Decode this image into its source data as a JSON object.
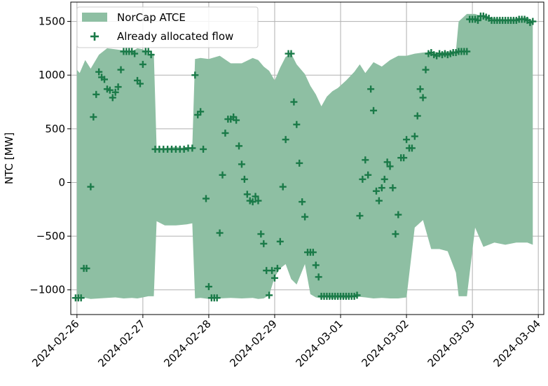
{
  "chart_data": {
    "type": "area",
    "title": "",
    "xlabel": "",
    "ylabel": "NTC [MW]",
    "ylim": [
      -1230,
      1680
    ],
    "xlim": [
      "2024-02-25T21:45",
      "2024-03-04T02:00"
    ],
    "x_ticks": [
      "2024-02-26",
      "2024-02-27",
      "2024-02-28",
      "2024-02-29",
      "2024-03-01",
      "2024-03-02",
      "2024-03-03",
      "2024-03-04"
    ],
    "y_ticks": [
      -1000,
      -500,
      0,
      500,
      1000,
      1500
    ],
    "y_tick_labels": [
      "−1000",
      "−500",
      "0",
      "500",
      "1000",
      "1500"
    ],
    "grid": true,
    "legend_position": "top-left",
    "colors": {
      "band": "#8ebfa3",
      "marker": "#1a7a48",
      "grid": "#b0b0b0"
    },
    "series": [
      {
        "name": "NorCap ATCE",
        "kind": "band",
        "x": [
          "2024-02-26T00:00",
          "2024-02-26T01:00",
          "2024-02-26T03:00",
          "2024-02-26T05:00",
          "2024-02-26T08:00",
          "2024-02-26T11:00",
          "2024-02-26T14:00",
          "2024-02-26T17:00",
          "2024-02-26T20:00",
          "2024-02-26T22:00",
          "2024-02-27T00:00",
          "2024-02-27T02:00",
          "2024-02-27T04:00",
          "2024-02-27T05:00",
          "2024-02-27T08:00",
          "2024-02-27T12:00",
          "2024-02-27T16:00",
          "2024-02-27T18:00",
          "2024-02-27T19:00",
          "2024-02-27T21:00",
          "2024-02-28T00:00",
          "2024-02-28T04:00",
          "2024-02-28T08:00",
          "2024-02-28T12:00",
          "2024-02-28T16:00",
          "2024-02-28T18:00",
          "2024-02-28T20:00",
          "2024-02-28T22:00",
          "2024-02-29T00:00",
          "2024-02-29T02:00",
          "2024-02-29T04:00",
          "2024-02-29T06:00",
          "2024-02-29T08:00",
          "2024-02-29T11:00",
          "2024-02-29T13:00",
          "2024-02-29T15:00",
          "2024-02-29T17:00",
          "2024-02-29T19:00",
          "2024-02-29T21:00",
          "2024-02-29T23:00",
          "2024-03-01T02:00",
          "2024-03-01T05:00",
          "2024-03-01T07:00",
          "2024-03-01T09:00",
          "2024-03-01T12:00",
          "2024-03-01T15:00",
          "2024-03-01T18:00",
          "2024-03-01T21:00",
          "2024-03-02T00:00",
          "2024-03-02T03:00",
          "2024-03-02T06:00",
          "2024-03-02T09:00",
          "2024-03-02T12:00",
          "2024-03-02T15:00",
          "2024-03-02T18:00",
          "2024-03-02T19:00",
          "2024-03-02T22:00",
          "2024-03-03T01:00",
          "2024-03-03T04:00",
          "2024-03-03T08:00",
          "2024-03-03T12:00",
          "2024-03-03T16:00",
          "2024-03-03T20:00",
          "2024-03-03T22:00"
        ],
        "upper": [
          1050,
          1020,
          1140,
          1060,
          1190,
          1250,
          1240,
          1230,
          1220,
          1250,
          1240,
          1200,
          1200,
          320,
          320,
          330,
          320,
          330,
          1150,
          1160,
          1150,
          1180,
          1110,
          1110,
          1160,
          1140,
          1080,
          1040,
          950,
          1070,
          1170,
          1200,
          1100,
          1010,
          900,
          820,
          710,
          800,
          850,
          880,
          950,
          1030,
          1100,
          1020,
          1120,
          1080,
          1140,
          1180,
          1180,
          1200,
          1210,
          1215,
          1210,
          1220,
          1225,
          1500,
          1570,
          1570,
          1540,
          1530,
          1520,
          1530,
          1540,
          1500
        ],
        "lower": [
          -1060,
          -1075,
          -1075,
          -1085,
          -1080,
          -1075,
          -1070,
          -1080,
          -1075,
          -1080,
          -1070,
          -1060,
          -1060,
          -360,
          -400,
          -400,
          -390,
          -380,
          -1080,
          -1075,
          -1085,
          -1080,
          -1075,
          -1080,
          -1075,
          -1085,
          -1080,
          -1050,
          -880,
          -800,
          -760,
          -900,
          -950,
          -760,
          -1040,
          -1070,
          -1080,
          -1070,
          -1085,
          -1075,
          -1080,
          -1070,
          -1065,
          -1070,
          -1080,
          -1075,
          -1080,
          -1080,
          -1070,
          -420,
          -350,
          -620,
          -620,
          -640,
          -840,
          -1060,
          -1060,
          -420,
          -600,
          -560,
          -580,
          -560,
          -560,
          -580
        ]
      },
      {
        "name": "Already allocated flow",
        "kind": "scatter",
        "marker": "+",
        "points": [
          [
            "2024-02-25T23:30",
            -1075
          ],
          [
            "2024-02-26T00:30",
            -1075
          ],
          [
            "2024-02-26T01:30",
            -1075
          ],
          [
            "2024-02-26T02:30",
            -800
          ],
          [
            "2024-02-26T03:30",
            -800
          ],
          [
            "2024-02-26T05:00",
            -40
          ],
          [
            "2024-02-26T06:00",
            610
          ],
          [
            "2024-02-26T07:00",
            820
          ],
          [
            "2024-02-26T08:00",
            1030
          ],
          [
            "2024-02-26T09:00",
            980
          ],
          [
            "2024-02-26T10:00",
            960
          ],
          [
            "2024-02-26T11:00",
            870
          ],
          [
            "2024-02-26T12:00",
            860
          ],
          [
            "2024-02-26T13:00",
            790
          ],
          [
            "2024-02-26T14:00",
            840
          ],
          [
            "2024-02-26T15:00",
            890
          ],
          [
            "2024-02-26T16:00",
            1050
          ],
          [
            "2024-02-26T17:00",
            1220
          ],
          [
            "2024-02-26T18:00",
            1220
          ],
          [
            "2024-02-26T19:00",
            1220
          ],
          [
            "2024-02-26T20:00",
            1220
          ],
          [
            "2024-02-26T21:00",
            1200
          ],
          [
            "2024-02-26T22:00",
            950
          ],
          [
            "2024-02-26T23:00",
            920
          ],
          [
            "2024-02-27T00:00",
            1100
          ],
          [
            "2024-02-27T01:00",
            1220
          ],
          [
            "2024-02-27T02:00",
            1220
          ],
          [
            "2024-02-27T03:00",
            1190
          ],
          [
            "2024-02-27T04:30",
            310
          ],
          [
            "2024-02-27T06:00",
            310
          ],
          [
            "2024-02-27T07:30",
            310
          ],
          [
            "2024-02-27T09:00",
            310
          ],
          [
            "2024-02-27T10:30",
            310
          ],
          [
            "2024-02-27T12:00",
            310
          ],
          [
            "2024-02-27T13:30",
            310
          ],
          [
            "2024-02-27T15:00",
            310
          ],
          [
            "2024-02-27T16:30",
            320
          ],
          [
            "2024-02-27T18:00",
            320
          ],
          [
            "2024-02-27T19:00",
            1000
          ],
          [
            "2024-02-27T20:00",
            630
          ],
          [
            "2024-02-27T21:00",
            660
          ],
          [
            "2024-02-27T22:00",
            310
          ],
          [
            "2024-02-27T23:00",
            -150
          ],
          [
            "2024-02-28T00:00",
            -970
          ],
          [
            "2024-02-28T01:00",
            -1075
          ],
          [
            "2024-02-28T02:00",
            -1075
          ],
          [
            "2024-02-28T03:00",
            -1075
          ],
          [
            "2024-02-28T04:00",
            -470
          ],
          [
            "2024-02-28T05:00",
            70
          ],
          [
            "2024-02-28T06:00",
            460
          ],
          [
            "2024-02-28T07:00",
            590
          ],
          [
            "2024-02-28T08:00",
            590
          ],
          [
            "2024-02-28T09:00",
            610
          ],
          [
            "2024-02-28T10:00",
            580
          ],
          [
            "2024-02-28T11:00",
            340
          ],
          [
            "2024-02-28T12:00",
            170
          ],
          [
            "2024-02-28T13:00",
            30
          ],
          [
            "2024-02-28T14:00",
            -110
          ],
          [
            "2024-02-28T15:00",
            -170
          ],
          [
            "2024-02-28T16:00",
            -180
          ],
          [
            "2024-02-28T17:00",
            -130
          ],
          [
            "2024-02-28T18:00",
            -170
          ],
          [
            "2024-02-28T19:00",
            -480
          ],
          [
            "2024-02-28T20:00",
            -570
          ],
          [
            "2024-02-28T21:00",
            -820
          ],
          [
            "2024-02-28T22:00",
            -1050
          ],
          [
            "2024-02-28T23:00",
            -820
          ],
          [
            "2024-02-29T00:00",
            -890
          ],
          [
            "2024-02-29T01:00",
            -800
          ],
          [
            "2024-02-29T02:00",
            -550
          ],
          [
            "2024-02-29T03:00",
            -40
          ],
          [
            "2024-02-29T04:00",
            400
          ],
          [
            "2024-02-29T05:00",
            1200
          ],
          [
            "2024-02-29T06:00",
            1200
          ],
          [
            "2024-02-29T07:00",
            750
          ],
          [
            "2024-02-29T08:00",
            540
          ],
          [
            "2024-02-29T09:00",
            180
          ],
          [
            "2024-02-29T10:00",
            -180
          ],
          [
            "2024-02-29T11:00",
            -320
          ],
          [
            "2024-02-29T12:00",
            -650
          ],
          [
            "2024-02-29T13:00",
            -650
          ],
          [
            "2024-02-29T14:00",
            -650
          ],
          [
            "2024-02-29T15:00",
            -770
          ],
          [
            "2024-02-29T16:00",
            -880
          ],
          [
            "2024-02-29T17:00",
            -1060
          ],
          [
            "2024-02-29T18:00",
            -1060
          ],
          [
            "2024-02-29T19:00",
            -1060
          ],
          [
            "2024-02-29T20:00",
            -1060
          ],
          [
            "2024-02-29T21:00",
            -1060
          ],
          [
            "2024-02-29T22:00",
            -1060
          ],
          [
            "2024-02-29T23:00",
            -1060
          ],
          [
            "2024-03-01T00:00",
            -1060
          ],
          [
            "2024-03-01T01:00",
            -1060
          ],
          [
            "2024-03-01T02:00",
            -1060
          ],
          [
            "2024-03-01T03:00",
            -1060
          ],
          [
            "2024-03-01T04:00",
            -1060
          ],
          [
            "2024-03-01T05:00",
            -1060
          ],
          [
            "2024-03-01T06:00",
            -1050
          ],
          [
            "2024-03-01T07:00",
            -310
          ],
          [
            "2024-03-01T08:00",
            30
          ],
          [
            "2024-03-01T09:00",
            210
          ],
          [
            "2024-03-01T10:00",
            70
          ],
          [
            "2024-03-01T11:00",
            870
          ],
          [
            "2024-03-01T12:00",
            670
          ],
          [
            "2024-03-01T13:00",
            -80
          ],
          [
            "2024-03-01T14:00",
            -170
          ],
          [
            "2024-03-01T15:00",
            -50
          ],
          [
            "2024-03-01T16:00",
            30
          ],
          [
            "2024-03-01T17:00",
            190
          ],
          [
            "2024-03-01T18:00",
            150
          ],
          [
            "2024-03-01T19:00",
            -50
          ],
          [
            "2024-03-01T20:00",
            -480
          ],
          [
            "2024-03-01T21:00",
            -300
          ],
          [
            "2024-03-01T22:00",
            230
          ],
          [
            "2024-03-01T23:00",
            230
          ],
          [
            "2024-03-02T00:00",
            400
          ],
          [
            "2024-03-02T01:00",
            320
          ],
          [
            "2024-03-02T02:00",
            320
          ],
          [
            "2024-03-02T03:00",
            430
          ],
          [
            "2024-03-02T04:00",
            620
          ],
          [
            "2024-03-02T05:00",
            870
          ],
          [
            "2024-03-02T06:00",
            790
          ],
          [
            "2024-03-02T07:00",
            1050
          ],
          [
            "2024-03-02T08:00",
            1200
          ],
          [
            "2024-03-02T09:00",
            1210
          ],
          [
            "2024-03-02T10:00",
            1190
          ],
          [
            "2024-03-02T11:00",
            1180
          ],
          [
            "2024-03-02T12:00",
            1200
          ],
          [
            "2024-03-02T13:00",
            1190
          ],
          [
            "2024-03-02T14:00",
            1200
          ],
          [
            "2024-03-02T15:00",
            1190
          ],
          [
            "2024-03-02T16:00",
            1200
          ],
          [
            "2024-03-02T17:00",
            1210
          ],
          [
            "2024-03-02T18:00",
            1210
          ],
          [
            "2024-03-02T19:00",
            1220
          ],
          [
            "2024-03-02T20:00",
            1220
          ],
          [
            "2024-03-02T21:00",
            1220
          ],
          [
            "2024-03-02T22:00",
            1220
          ],
          [
            "2024-03-02T23:00",
            1520
          ],
          [
            "2024-03-03T00:00",
            1520
          ],
          [
            "2024-03-03T01:00",
            1520
          ],
          [
            "2024-03-03T02:00",
            1510
          ],
          [
            "2024-03-03T03:00",
            1550
          ],
          [
            "2024-03-03T04:00",
            1550
          ],
          [
            "2024-03-03T05:00",
            1540
          ],
          [
            "2024-03-03T06:00",
            1530
          ],
          [
            "2024-03-03T07:00",
            1510
          ],
          [
            "2024-03-03T08:00",
            1510
          ],
          [
            "2024-03-03T09:00",
            1510
          ],
          [
            "2024-03-03T10:00",
            1510
          ],
          [
            "2024-03-03T11:00",
            1510
          ],
          [
            "2024-03-03T12:00",
            1510
          ],
          [
            "2024-03-03T13:00",
            1510
          ],
          [
            "2024-03-03T14:00",
            1510
          ],
          [
            "2024-03-03T15:00",
            1510
          ],
          [
            "2024-03-03T16:00",
            1510
          ],
          [
            "2024-03-03T17:00",
            1520
          ],
          [
            "2024-03-03T18:00",
            1520
          ],
          [
            "2024-03-03T19:00",
            1520
          ],
          [
            "2024-03-03T20:00",
            1510
          ],
          [
            "2024-03-03T21:00",
            1490
          ],
          [
            "2024-03-03T22:00",
            1500
          ]
        ]
      }
    ]
  }
}
